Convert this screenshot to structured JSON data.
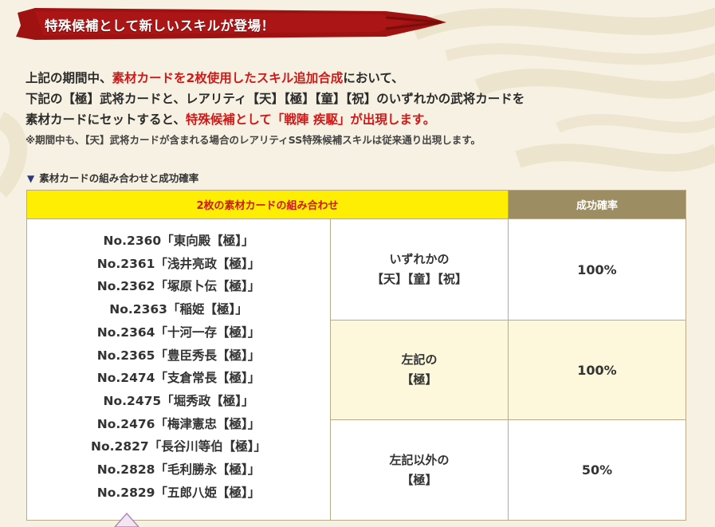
{
  "banner": {
    "title": "特殊候補として新しいスキルが登場！"
  },
  "intro": {
    "line1_a": "上記の期間中、",
    "line1_b": "素材カードを2枚使用したスキル追加合成",
    "line1_c": "において、",
    "line2": "下記の【極】武将カードと、レアリティ【天】【極】【童】【祝】のいずれかの武将カードを",
    "line3_a": "素材カードにセットすると、",
    "line3_b": "特殊候補として「戦陣 疾駆」が出現します。",
    "note": "※期間中も、【天】武将カードが含まれる場合のレアリティSS特殊候補スキルは従来通り出現します。"
  },
  "section": {
    "title": "素材カードの組み合わせと成功確率"
  },
  "table": {
    "header_combo": "2枚の素材カードの組み合わせ",
    "header_rate": "成功確率",
    "cards": [
      "No.2360「東向殿【極】」",
      "No.2361「浅井亮政【極】」",
      "No.2362「塚原卜伝【極】」",
      "No.2363「稲姫【極】」",
      "No.2364「十河一存【極】」",
      "No.2365「豊臣秀長【極】」",
      "No.2474「支倉常長【極】」",
      "No.2475「堀秀政【極】」",
      "No.2476「梅津憲忠【極】」",
      "No.2827「長谷川等伯【極】」",
      "No.2828「毛利勝永【極】」",
      "No.2829「五郎八姫【極】」"
    ],
    "rows": [
      {
        "cond_line1": "いずれかの",
        "cond_line2": "【天】【童】【祝】",
        "rate": "100%"
      },
      {
        "cond_line1": "左記の",
        "cond_line2": "【極】",
        "rate": "100%"
      },
      {
        "cond_line1": "左記以外の",
        "cond_line2": "【極】",
        "rate": "50%"
      }
    ]
  },
  "colors": {
    "accent_red": "#d01818",
    "header_yellow": "#fdee04",
    "header_khaki": "#9d8d62",
    "banner_red": "#9e1212",
    "background": "#f6f1e2"
  }
}
